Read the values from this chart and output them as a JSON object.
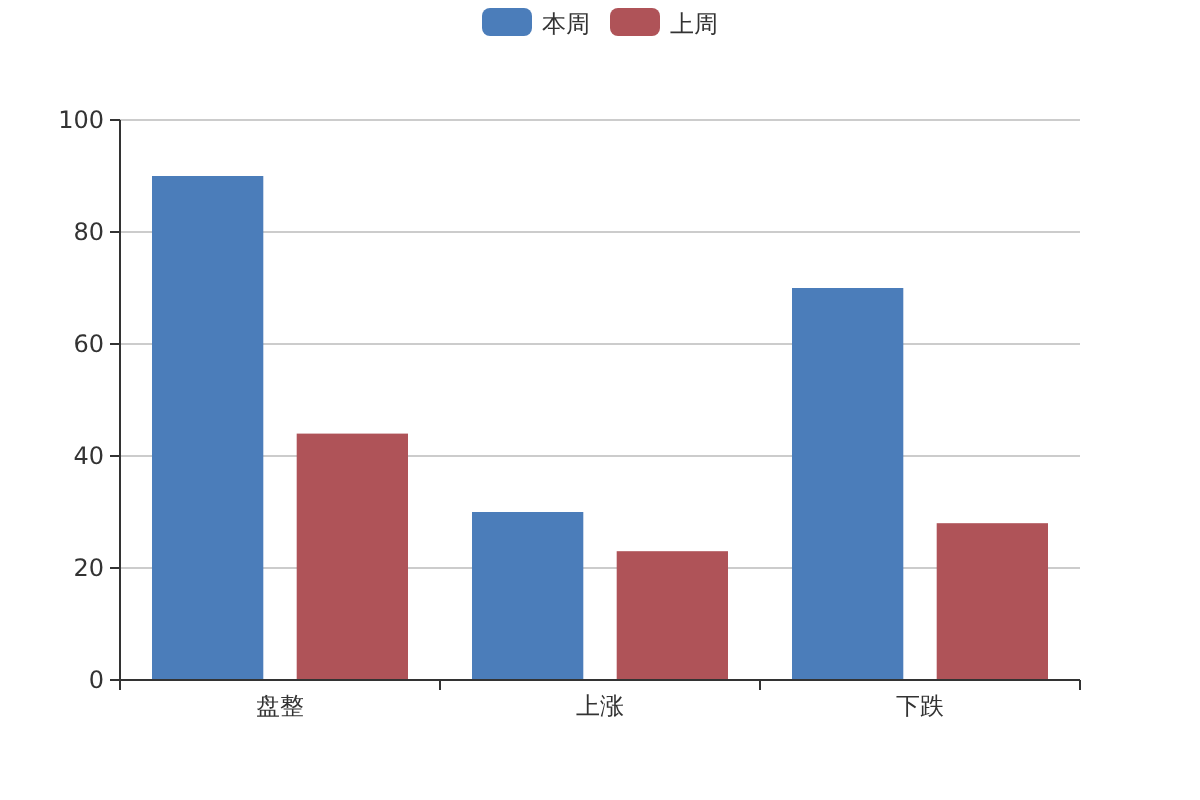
{
  "chart_data": {
    "type": "bar",
    "categories": [
      "盘整",
      "上涨",
      "下跌"
    ],
    "series": [
      {
        "name": "本周",
        "color": "#4b7dba",
        "values": [
          90,
          30,
          70
        ]
      },
      {
        "name": "上周",
        "color": "#af5358",
        "values": [
          44,
          23,
          28
        ]
      }
    ],
    "ylim": [
      0,
      100
    ],
    "yticks": [
      0,
      20,
      40,
      60,
      80,
      100
    ],
    "grid": "y",
    "legend": "top"
  }
}
